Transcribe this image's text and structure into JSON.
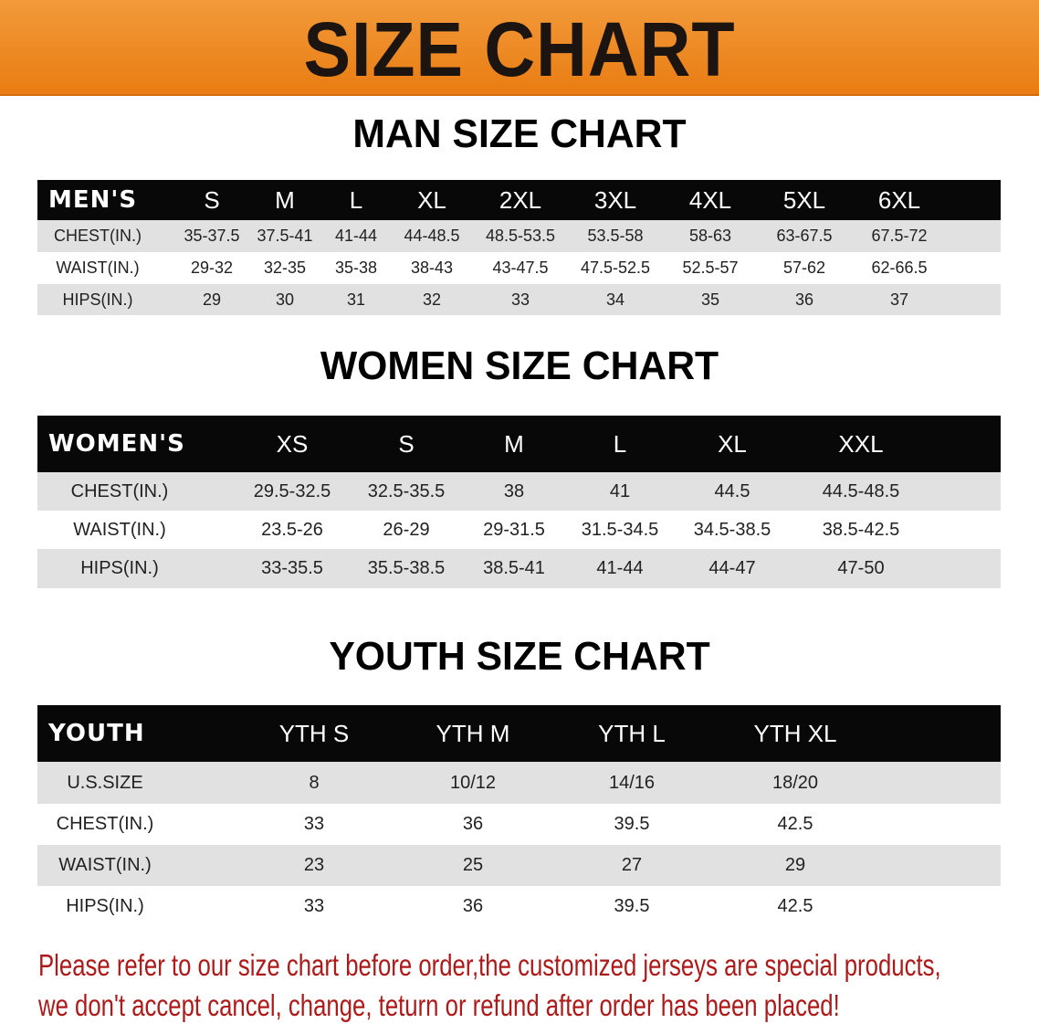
{
  "title": "SIZE CHART",
  "colors": {
    "banner": "#ed8519",
    "header_row": "#080808",
    "note_text": "#ae1a1a"
  },
  "men": {
    "title": "MAN SIZE CHART",
    "header": [
      "MEN'S",
      "S",
      "M",
      "L",
      "XL",
      "2XL",
      "3XL",
      "4XL",
      "5XL",
      "6XL"
    ],
    "rows": [
      [
        "CHEST(IN.)",
        "35-37.5",
        "37.5-41",
        "41-44",
        "44-48.5",
        "48.5-53.5",
        "53.5-58",
        "58-63",
        "63-67.5",
        "67.5-72"
      ],
      [
        "WAIST(IN.)",
        "29-32",
        "32-35",
        "35-38",
        "38-43",
        "43-47.5",
        "47.5-52.5",
        "52.5-57",
        "57-62",
        "62-66.5"
      ],
      [
        "HIPS(IN.)",
        "29",
        "30",
        "31",
        "32",
        "33",
        "34",
        "35",
        "36",
        "37"
      ]
    ]
  },
  "women": {
    "title": "WOMEN SIZE CHART",
    "header": [
      "WOMEN'S",
      "XS",
      "S",
      "M",
      "L",
      "XL",
      "XXL"
    ],
    "rows": [
      [
        "CHEST(IN.)",
        "29.5-32.5",
        "32.5-35.5",
        "38",
        "41",
        "44.5",
        "44.5-48.5"
      ],
      [
        "WAIST(IN.)",
        "23.5-26",
        "26-29",
        "29-31.5",
        "31.5-34.5",
        "34.5-38.5",
        "38.5-42.5"
      ],
      [
        "HIPS(IN.)",
        "33-35.5",
        "35.5-38.5",
        "38.5-41",
        "41-44",
        "44-47",
        "47-50"
      ]
    ]
  },
  "youth": {
    "title": "YOUTH SIZE CHART",
    "header": [
      "YOUTH",
      "YTH S",
      "YTH M",
      "YTH L",
      "YTH XL"
    ],
    "rows": [
      [
        "U.S.SIZE",
        "8",
        "10/12",
        "14/16",
        "18/20"
      ],
      [
        "CHEST(IN.)",
        "33",
        "36",
        "39.5",
        "42.5"
      ],
      [
        "WAIST(IN.)",
        "23",
        "25",
        "27",
        "29"
      ],
      [
        "HIPS(IN.)",
        "33",
        "36",
        "39.5",
        "42.5"
      ]
    ]
  },
  "note": {
    "line1": "Please refer to our size chart before order,the customized jerseys are special products,",
    "line2": "we don't accept cancel, change, teturn or refund after order has been placed!"
  }
}
